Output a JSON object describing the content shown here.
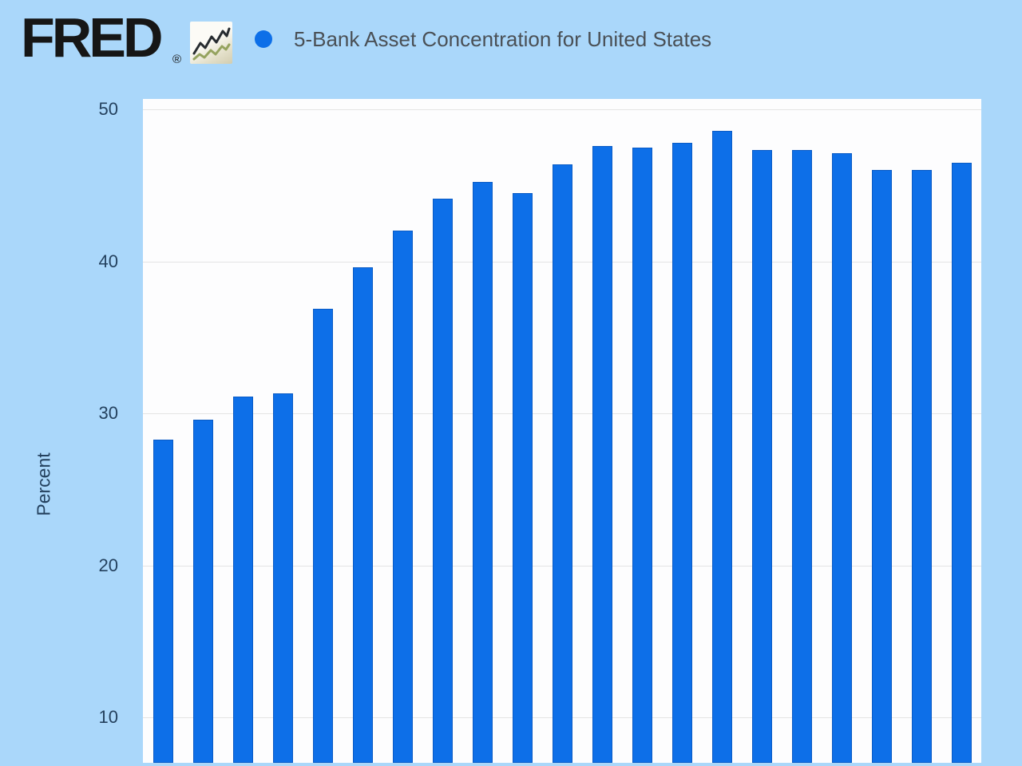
{
  "header": {
    "logo": "FRED",
    "registered_mark": "®",
    "series_title": "5-Bank Asset Concentration for United States"
  },
  "icons": {
    "fred_chart_icon": "zigzag-line-chart-icon"
  },
  "chart_data": {
    "type": "bar",
    "title": "5-Bank Asset Concentration for United States",
    "ylabel": "Percent",
    "yticks": [
      50,
      40,
      30,
      20,
      10
    ],
    "values": [
      28.3,
      29.6,
      31.1,
      31.3,
      36.9,
      39.6,
      42.0,
      44.1,
      45.2,
      44.5,
      46.4,
      47.6,
      47.5,
      47.8,
      48.6,
      47.3,
      47.3,
      47.1,
      46.0,
      46.0,
      46.5
    ],
    "bar_count": 21,
    "ylim_visible": [
      7.0,
      50.7
    ],
    "grid": "horizontal",
    "legend_position": "top-left-dot",
    "x_axis_labels_visible": false,
    "colors": {
      "bar": "#0d6fe8",
      "bar_border": "#0a5bc5",
      "legend_dot": "#0d6fe8",
      "page_background": "#aad7fa",
      "plot_background": "#fdfdfe",
      "gridline": "#e4e4e4",
      "axis_text": "#24415e",
      "title_text": "#4a5056",
      "logo_text": "#161616"
    }
  }
}
